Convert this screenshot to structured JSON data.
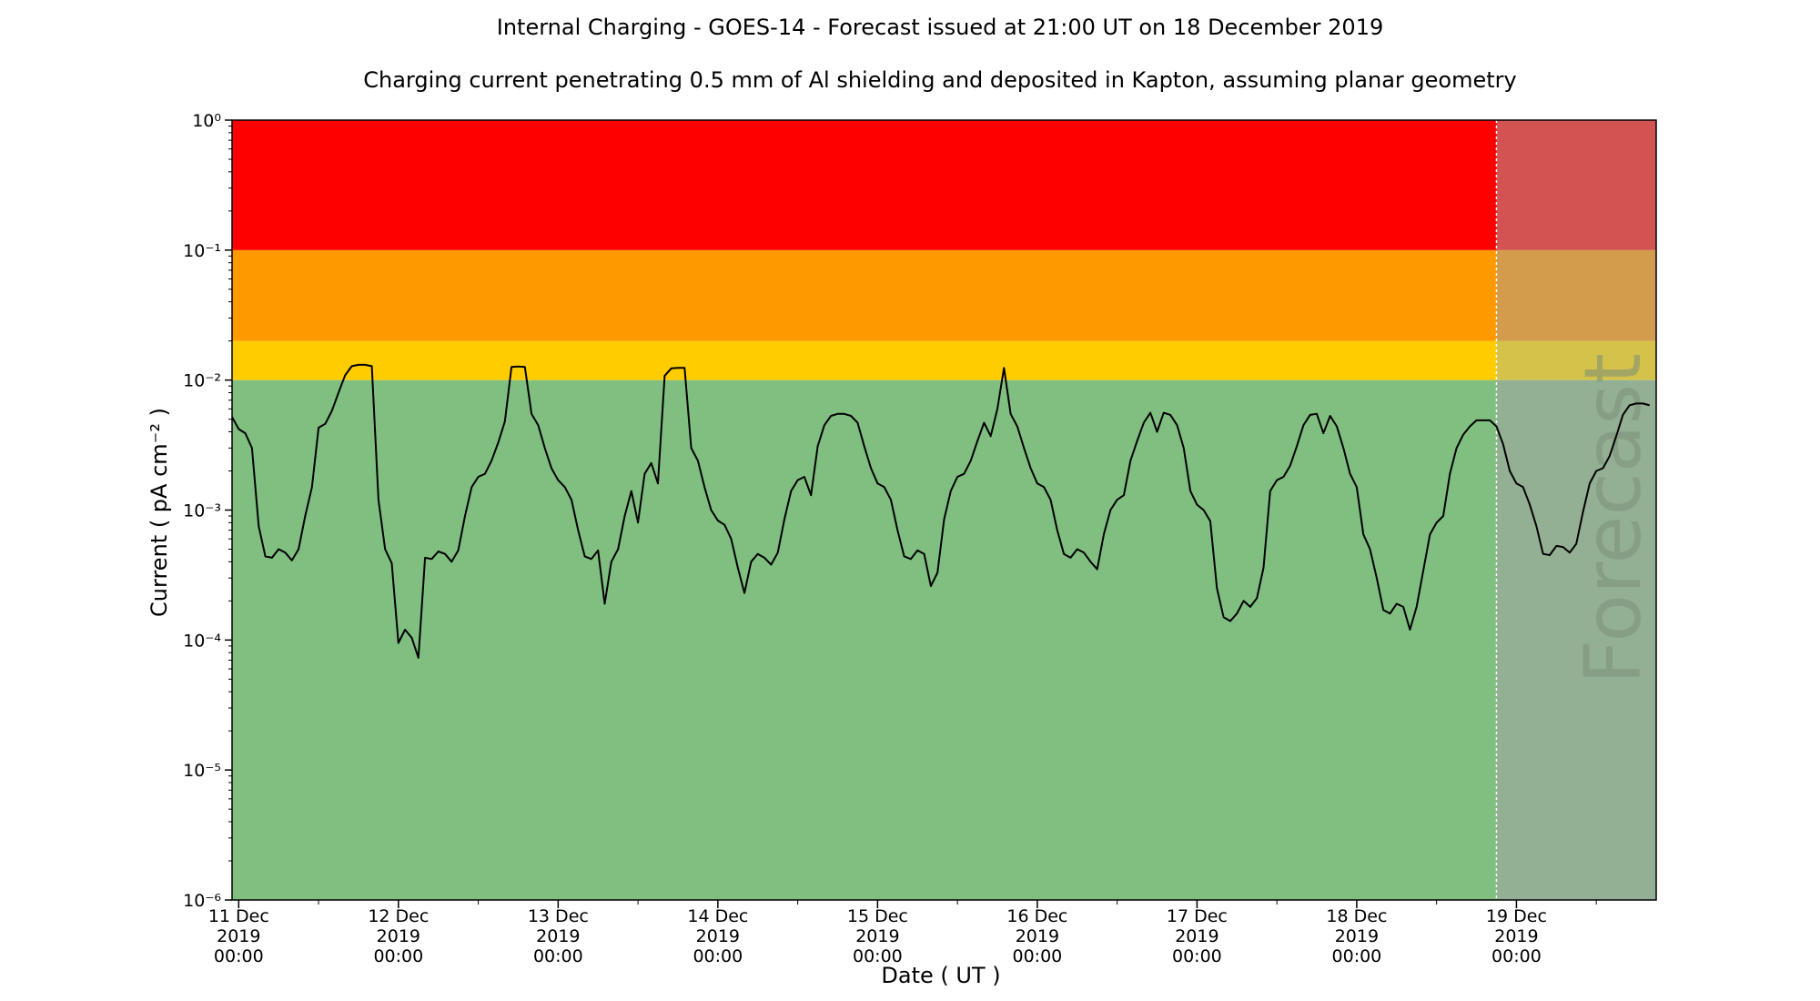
{
  "chart_data": {
    "type": "line",
    "title": "Internal Charging - GOES-14 - Forecast issued at 21:00 UT on 18 December 2019",
    "subtitle": "Charging current penetrating 0.5 mm of Al shielding and deposited in Kapton, assuming planar geometry",
    "xlabel": "Date ( UT )",
    "ylabel": "Current ( pA cm⁻² )",
    "yscale": "log",
    "ylim": [
      1e-06,
      1
    ],
    "xlim": [
      "2019-12-10T23:00",
      "2019-12-19T21:00"
    ],
    "y_ticks": [
      {
        "value": 1e-06,
        "label": "10⁻⁶"
      },
      {
        "value": 1e-05,
        "label": "10⁻⁵"
      },
      {
        "value": 0.0001,
        "label": "10⁻⁴"
      },
      {
        "value": 0.001,
        "label": "10⁻³"
      },
      {
        "value": 0.01,
        "label": "10⁻²"
      },
      {
        "value": 0.1,
        "label": "10⁻¹"
      },
      {
        "value": 1,
        "label": "10⁰"
      }
    ],
    "x_ticks": [
      {
        "value": "2019-12-11T00:00",
        "lines": [
          "11 Dec",
          "2019",
          "00:00"
        ]
      },
      {
        "value": "2019-12-12T00:00",
        "lines": [
          "12 Dec",
          "2019",
          "00:00"
        ]
      },
      {
        "value": "2019-12-13T00:00",
        "lines": [
          "13 Dec",
          "2019",
          "00:00"
        ]
      },
      {
        "value": "2019-12-14T00:00",
        "lines": [
          "14 Dec",
          "2019",
          "00:00"
        ]
      },
      {
        "value": "2019-12-15T00:00",
        "lines": [
          "15 Dec",
          "2019",
          "00:00"
        ]
      },
      {
        "value": "2019-12-16T00:00",
        "lines": [
          "16 Dec",
          "2019",
          "00:00"
        ]
      },
      {
        "value": "2019-12-17T00:00",
        "lines": [
          "17 Dec",
          "2019",
          "00:00"
        ]
      },
      {
        "value": "2019-12-18T00:00",
        "lines": [
          "18 Dec",
          "2019",
          "00:00"
        ]
      },
      {
        "value": "2019-12-19T00:00",
        "lines": [
          "19 Dec",
          "2019",
          "00:00"
        ]
      }
    ],
    "x_minor_tick_hours": 12,
    "risk_bands": [
      {
        "from": 1e-06,
        "to": 0.01,
        "color": "#80bf80",
        "forecast_color": "#94b094"
      },
      {
        "from": 0.01,
        "to": 0.02,
        "color": "#ffcc00",
        "forecast_color": "#d4c24a"
      },
      {
        "from": 0.02,
        "to": 0.1,
        "color": "#ff9900",
        "forecast_color": "#d39b4c"
      },
      {
        "from": 0.1,
        "to": 1,
        "color": "#ff0000",
        "forecast_color": "#d35252"
      }
    ],
    "forecast_start": "2019-12-18T21:00",
    "forecast_label": "Forecast",
    "forecast_divider_color": "#ffffff",
    "line_color": "#000000",
    "series": [
      {
        "x_start": "2019-12-10T23:00",
        "x_step_hours": 1,
        "values": [
          0.0052,
          0.0042,
          0.0039,
          0.003,
          0.00075,
          0.00044,
          0.00043,
          0.0005,
          0.00047,
          0.00041,
          0.0005,
          0.0009,
          0.0015,
          0.0043,
          0.0046,
          0.0058,
          0.008,
          0.0109,
          0.0128,
          0.0131,
          0.0131,
          0.0128,
          0.0012,
          0.0005,
          0.00039,
          9.5e-05,
          0.00012,
          0.000104,
          7.3e-05,
          0.00043,
          0.00042,
          0.00048,
          0.00046,
          0.0004,
          0.00049,
          0.0009,
          0.0015,
          0.0018,
          0.0019,
          0.0024,
          0.0033,
          0.0048,
          0.0126,
          0.0127,
          0.0126,
          0.0055,
          0.0045,
          0.003,
          0.0021,
          0.0017,
          0.0015,
          0.0012,
          0.0007,
          0.00044,
          0.00042,
          0.00049,
          0.00019,
          0.0004,
          0.0005,
          0.0009,
          0.0014,
          0.0008,
          0.0019,
          0.0023,
          0.0016,
          0.0108,
          0.0123,
          0.0124,
          0.0124,
          0.003,
          0.0024,
          0.0015,
          0.001,
          0.00083,
          0.00077,
          0.0006,
          0.00036,
          0.00023,
          0.0004,
          0.00046,
          0.00043,
          0.00038,
          0.00047,
          0.00085,
          0.0014,
          0.0017,
          0.0018,
          0.0013,
          0.0031,
          0.0045,
          0.0053,
          0.0055,
          0.0055,
          0.0053,
          0.0047,
          0.0031,
          0.0021,
          0.0016,
          0.0015,
          0.0012,
          0.0007,
          0.00044,
          0.00042,
          0.00049,
          0.00046,
          0.00026,
          0.00033,
          0.00085,
          0.0014,
          0.0018,
          0.0019,
          0.0024,
          0.0034,
          0.0047,
          0.0037,
          0.006,
          0.0124,
          0.0055,
          0.0044,
          0.003,
          0.0021,
          0.0016,
          0.0015,
          0.0012,
          0.0007,
          0.00046,
          0.00043,
          0.0005,
          0.00047,
          0.0004,
          0.00035,
          0.00065,
          0.001,
          0.0012,
          0.0013,
          0.0024,
          0.0034,
          0.0047,
          0.0056,
          0.004,
          0.0056,
          0.0054,
          0.0045,
          0.003,
          0.0014,
          0.0011,
          0.001,
          0.00082,
          0.00025,
          0.00015,
          0.00014,
          0.00016,
          0.0002,
          0.00018,
          0.00021,
          0.00036,
          0.0014,
          0.0017,
          0.0018,
          0.0022,
          0.0031,
          0.0045,
          0.0054,
          0.0055,
          0.0039,
          0.0053,
          0.0044,
          0.003,
          0.0019,
          0.0015,
          0.00065,
          0.0005,
          0.0003,
          0.00017,
          0.00016,
          0.00019,
          0.00018,
          0.00012,
          0.00018,
          0.00034,
          0.00065,
          0.0008,
          0.0009,
          0.0019,
          0.003,
          0.0038,
          0.0044,
          0.0049,
          0.0049,
          0.0049,
          0.0044,
          0.0032,
          0.002,
          0.0016,
          0.0015,
          0.0011,
          0.00075,
          0.00046,
          0.00045,
          0.00053,
          0.00052,
          0.00047,
          0.00055,
          0.00097,
          0.0016,
          0.002,
          0.0021,
          0.0026,
          0.0037,
          0.0054,
          0.0064,
          0.0066,
          0.0066,
          0.0064
        ]
      }
    ]
  }
}
